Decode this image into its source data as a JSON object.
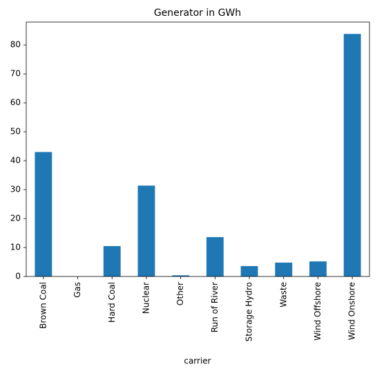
{
  "chart_data": {
    "type": "bar",
    "title": "Generator in GWh",
    "x_label": "carrier",
    "categories": [
      "Brown Coal",
      "Gas",
      "Hard Coal",
      "Nuclear",
      "Other",
      "Run of River",
      "Storage Hydro",
      "Waste",
      "Wind Offshore",
      "Wind Onshore"
    ],
    "values": [
      43,
      0,
      10.5,
      31.4,
      0.4,
      13.6,
      3.6,
      4.8,
      5.2,
      83.8
    ],
    "color": "#1f77b4",
    "ylim": [
      0,
      87.9
    ],
    "yticks": [
      0,
      10,
      20,
      30,
      40,
      50,
      60,
      70,
      80
    ],
    "grid": false
  }
}
